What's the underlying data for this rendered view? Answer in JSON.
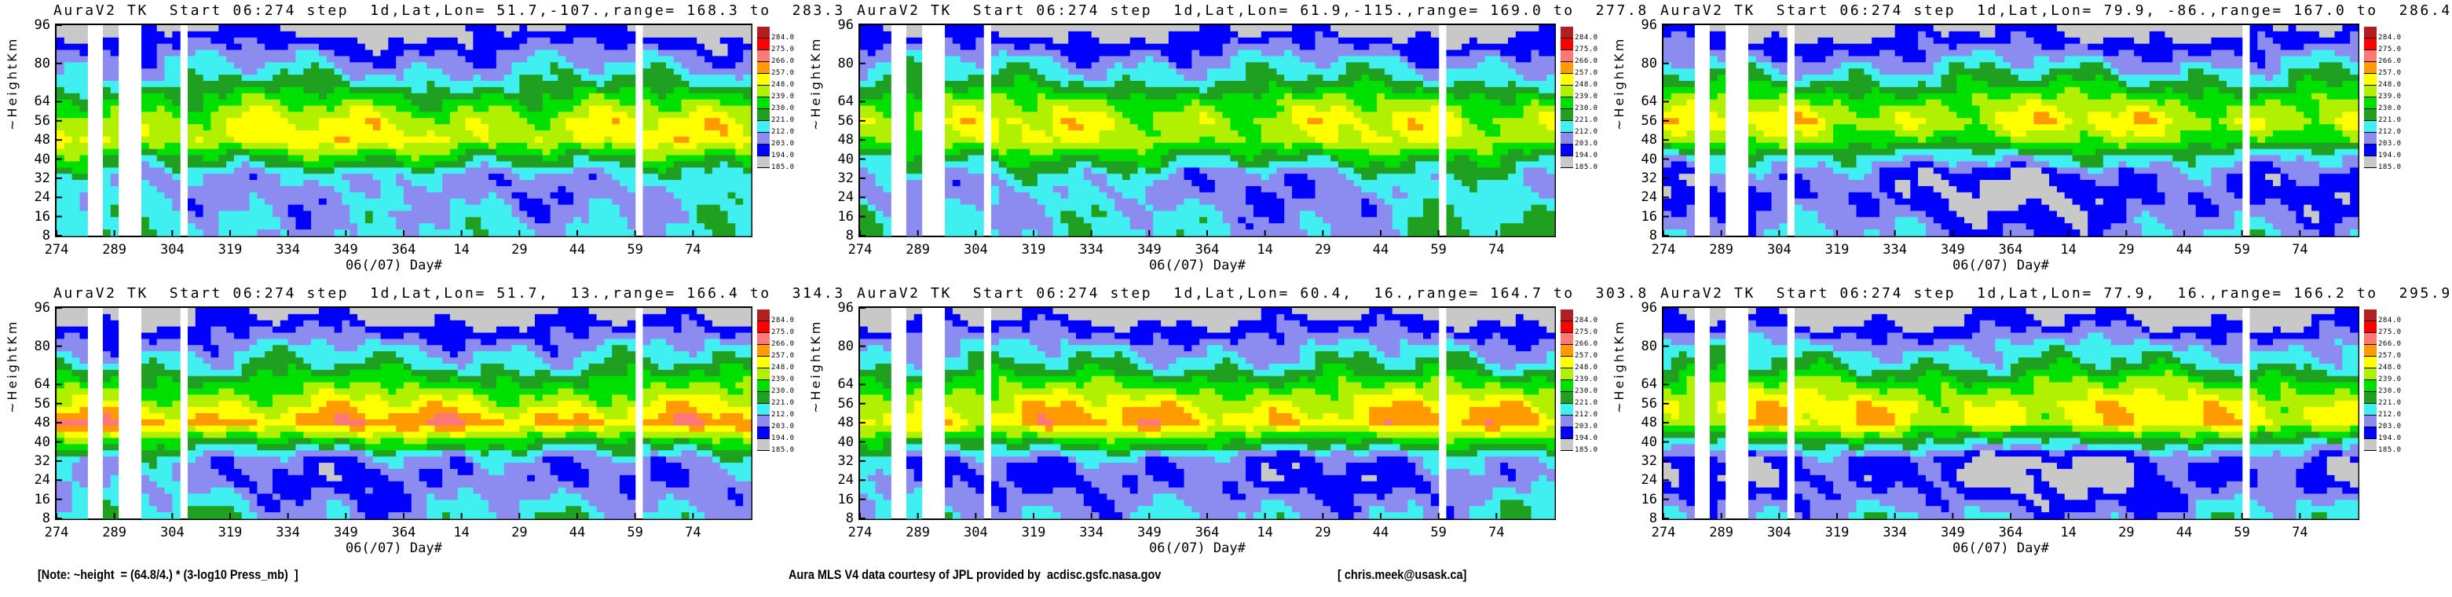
{
  "chart_data": {
    "type": "heatmap",
    "x_ticks": [
      "274",
      "289",
      "304",
      "319",
      "334",
      "349",
      "364",
      "14",
      "29",
      "44",
      "59",
      "74"
    ],
    "x_tick_days": [
      0,
      15,
      30,
      45,
      60,
      75,
      90,
      105,
      120,
      135,
      150,
      165
    ],
    "x_range_days": [
      0,
      180
    ],
    "xlabel": "06(/07) Day#",
    "ylabel": "~HeightKm",
    "y_ticks": [
      "96",
      "80",
      "64",
      "56",
      "48",
      "40",
      "32",
      "24",
      "16",
      "8"
    ],
    "y_tick_values": [
      96,
      80,
      64,
      56,
      48,
      40,
      32,
      24,
      16,
      8
    ],
    "ylim": [
      8,
      96
    ],
    "colorbar": {
      "labels": [
        "284.0",
        "275.0",
        "266.0",
        "257.0",
        "248.0",
        "239.0",
        "230.0",
        "221.0",
        "212.0",
        "203.0",
        "194.0",
        "185.0"
      ],
      "levels": [
        185,
        194,
        203,
        212,
        221,
        230,
        239,
        248,
        257,
        266,
        275,
        284
      ],
      "colors": [
        "#c8c8c8",
        "#0000ff",
        "#8c8cf0",
        "#40f0f0",
        "#20a020",
        "#00e000",
        "#b0f000",
        "#ffff00",
        "#ff9a00",
        "#ff7878",
        "#ff0000",
        "#b02020"
      ]
    },
    "data_gaps_days": [
      [
        8,
        12
      ],
      [
        16,
        18
      ],
      [
        19,
        21
      ],
      [
        32,
        34
      ],
      [
        150,
        152
      ]
    ],
    "profile_heights_km": [
      8,
      16,
      24,
      32,
      40,
      48,
      56,
      64,
      72,
      80,
      88,
      96
    ],
    "panels": [
      {
        "title": "AuraV2 TK  Start 06:274 step  1d,Lat,Lon= 51.7,-107.,range= 168.3 to  283.3",
        "mean_profile_K": [
          218,
          215,
          212,
          214,
          228,
          250,
          247,
          235,
          220,
          210,
          200,
          188
        ]
      },
      {
        "title": "AuraV2 TK  Start 06:274 step  1d,Lat,Lon= 61.9,-115.,range= 169.0 to  277.8",
        "mean_profile_K": [
          218,
          216,
          212,
          214,
          226,
          245,
          247,
          238,
          222,
          212,
          200,
          188
        ]
      },
      {
        "title": "AuraV2 TK  Start 06:274 step  1d,Lat,Lon= 79.9, -86.,range= 167.0 to  286.4",
        "mean_profile_K": [
          212,
          205,
          200,
          203,
          215,
          238,
          250,
          240,
          225,
          212,
          200,
          188
        ]
      },
      {
        "title": "AuraV2 TK  Start 06:274 step  1d,Lat,Lon= 51.7,  13.,range= 166.4 to  314.3",
        "mean_profile_K": [
          218,
          212,
          206,
          210,
          232,
          262,
          248,
          235,
          220,
          210,
          198,
          186
        ]
      },
      {
        "title": "AuraV2 TK  Start 06:274 step  1d,Lat,Lon= 60.4,  16.,range= 164.7 to  303.8",
        "mean_profile_K": [
          216,
          210,
          204,
          208,
          230,
          258,
          250,
          236,
          220,
          210,
          198,
          186
        ]
      },
      {
        "title": "AuraV2 TK  Start 06:274 step  1d,Lat,Lon= 77.9,  16.,range= 166.2 to  295.9",
        "mean_profile_K": [
          215,
          206,
          198,
          200,
          222,
          252,
          250,
          238,
          222,
          212,
          198,
          186
        ]
      }
    ]
  },
  "footer": {
    "note": "[Note: ~height  = (64.8/4.) * (3-log10 Press_mb)  ]",
    "credit": "Aura MLS V4 data courtesy of JPL provided by  acdisc.gsfc.nasa.gov",
    "contact": "[ chris.meek@usask.ca]"
  }
}
